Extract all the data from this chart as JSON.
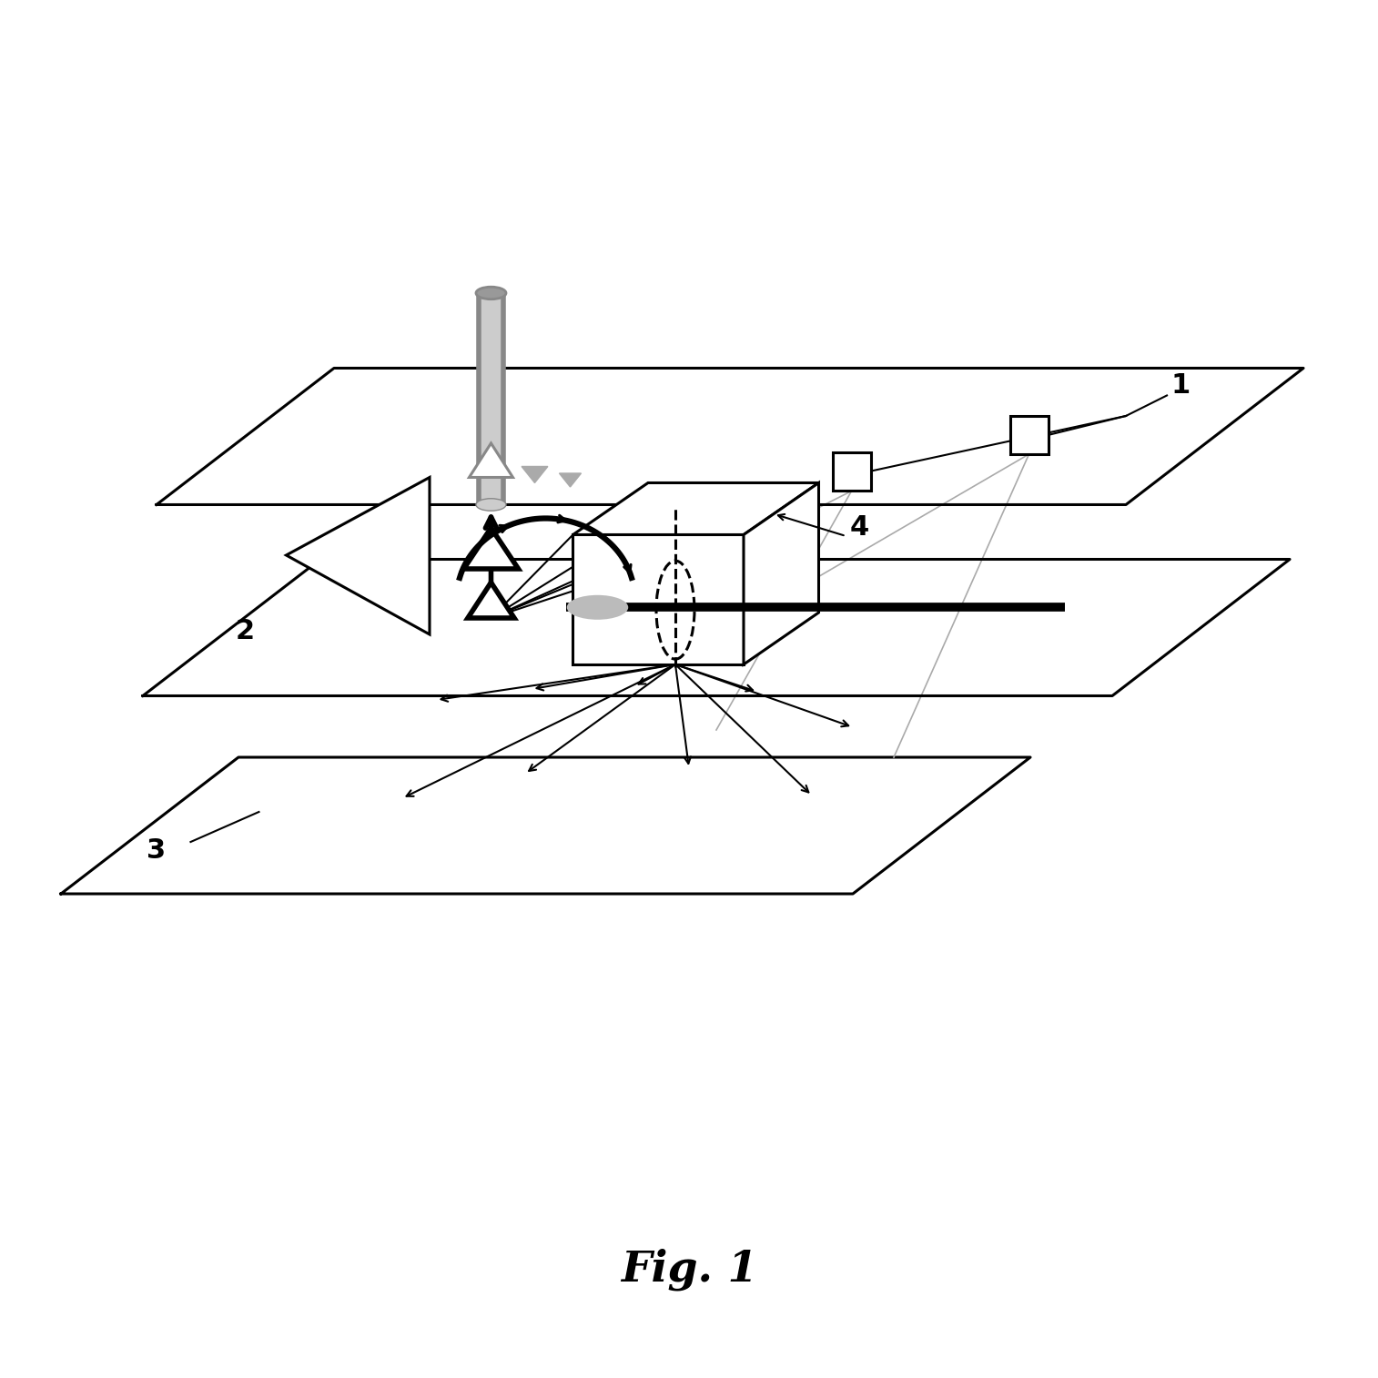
{
  "title": "Fig. 1",
  "background": "#ffffff",
  "label_1": "1",
  "label_2": "2",
  "label_3": "3",
  "label_4": "4",
  "figsize": [
    15.14,
    15.14
  ],
  "dpi": 100
}
